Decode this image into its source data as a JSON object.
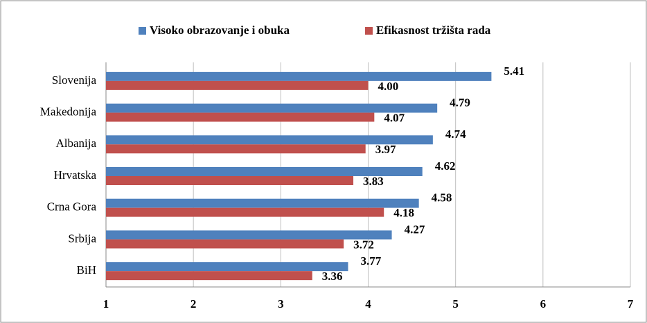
{
  "chart_data": {
    "type": "bar",
    "orientation": "horizontal",
    "categories": [
      "Slovenija",
      "Makedonija",
      "Albanija",
      "Hrvatska",
      "Crna Gora",
      "Srbija",
      "BiH"
    ],
    "series": [
      {
        "name": "Visoko obrazovanje i obuka",
        "color": "#4f81bd",
        "values": [
          5.41,
          4.79,
          4.74,
          4.62,
          4.58,
          4.27,
          3.77
        ],
        "value_labels": [
          "5.41",
          "4.79",
          "4.74",
          "4.62",
          "4.58",
          "4.27",
          "3.77"
        ]
      },
      {
        "name": "Efikasnost tržišta rada",
        "color": "#c0504d",
        "values": [
          4.0,
          4.07,
          3.97,
          3.83,
          4.18,
          3.72,
          3.36
        ],
        "value_labels": [
          "4.00",
          "4.07",
          "3.97",
          "3.83",
          "4.18",
          "3.72",
          "3.36"
        ]
      }
    ],
    "xlim": [
      1,
      7
    ],
    "xticks": [
      1,
      2,
      3,
      4,
      5,
      6,
      7
    ],
    "grid": true,
    "legend": "top"
  }
}
